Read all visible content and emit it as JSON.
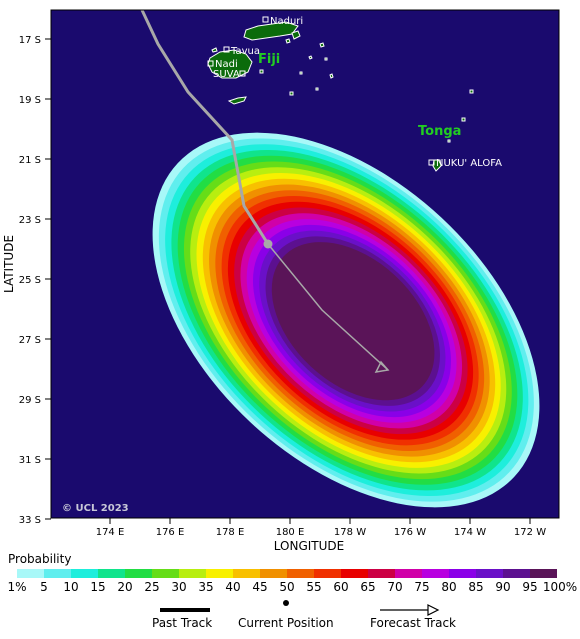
{
  "map": {
    "y_axis_title": "LATITUDE",
    "x_axis_title": "LONGITUDE",
    "lat_ticks": [
      "17 S",
      "19 S",
      "21 S",
      "23 S",
      "25 S",
      "27 S",
      "29 S",
      "31 S",
      "33 S"
    ],
    "lon_ticks": [
      "174 E",
      "176 E",
      "178 E",
      "180 E",
      "178 W",
      "176 W",
      "174 W",
      "172 W"
    ],
    "copyright": "© UCL 2023",
    "countries": {
      "fiji": "Fiji",
      "tonga": "Tonga"
    },
    "places": {
      "naduri": "Naduri",
      "tavua": "Tavua",
      "nadi": "Nadi",
      "suva": "SUVA",
      "nukualofa": "NUKU' ALOFA"
    },
    "colors": {
      "ocean": "#1a0a6e",
      "land": "#0b6b0b",
      "track": "#a8a8a8",
      "country_label": "#22cc22"
    }
  },
  "legend": {
    "title": "Probability",
    "ticks": [
      "1%",
      "5",
      "10",
      "15",
      "20",
      "25",
      "30",
      "35",
      "40",
      "45",
      "50",
      "55",
      "60",
      "65",
      "70",
      "75",
      "80",
      "85",
      "90",
      "95",
      "100%"
    ],
    "colors": [
      "#a8f8f8",
      "#60eeee",
      "#1eeedc",
      "#10e48c",
      "#22dd44",
      "#66dd18",
      "#b8ee10",
      "#f8f000",
      "#f8c000",
      "#f09000",
      "#f06000",
      "#f03000",
      "#e80000",
      "#cc0044",
      "#d000a8",
      "#b800e0",
      "#8a00e8",
      "#6a10c8",
      "#5c1090",
      "#5a1458"
    ],
    "past_track": "Past Track",
    "current_position": "Current Position",
    "forecast_track": "Forecast Track"
  },
  "chart_data": {
    "type": "map",
    "region": "Fiji / Tonga, South Pacific",
    "lat_range": [
      "16 S",
      "33 S"
    ],
    "lon_range": [
      "172 E",
      "171 W"
    ],
    "current_position": {
      "lat": "23.8 S",
      "lon": "179.2 E"
    },
    "past_track": [
      {
        "lat": "16 S",
        "lon": "175.6 E"
      },
      {
        "lat": "17.2 S",
        "lon": "176.2 E"
      },
      {
        "lat": "18.8 S",
        "lon": "177.2 E"
      },
      {
        "lat": "20.5 S",
        "lon": "178.5 E"
      },
      {
        "lat": "23.8 S",
        "lon": "179.2 E"
      }
    ],
    "forecast_track": [
      {
        "lat": "23.8 S",
        "lon": "179.2 E"
      },
      {
        "lat": "26.4 S",
        "lon": "179.0 W"
      },
      {
        "lat": "28.0 S",
        "lon": "176.8 W"
      }
    ],
    "probability_levels_percent": [
      1,
      5,
      10,
      15,
      20,
      25,
      30,
      35,
      40,
      45,
      50,
      55,
      60,
      65,
      70,
      75,
      80,
      85,
      90,
      95,
      100
    ]
  }
}
